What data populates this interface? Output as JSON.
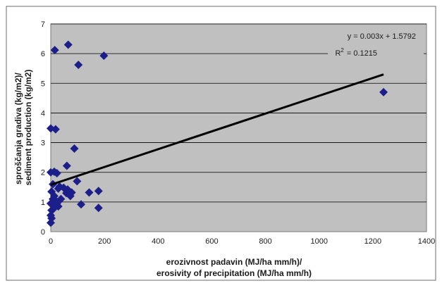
{
  "chart_data": {
    "type": "scatter",
    "title": "",
    "xlabel": [
      "erozivnost padavin (MJ/ha mm/h)/",
      "erosivity of precipitation (MJ/ha mm/h)"
    ],
    "ylabel": [
      "sproščanja gradiva (kg/m2)/",
      "sediment production (kg/m2)"
    ],
    "xlim": [
      0,
      1400
    ],
    "ylim": [
      0,
      7
    ],
    "x_ticks": [
      0,
      200,
      400,
      600,
      800,
      1000,
      1200,
      1400
    ],
    "y_ticks": [
      0,
      1,
      2,
      3,
      4,
      5,
      6,
      7
    ],
    "grid": "horizontal",
    "legend": "none",
    "colors": {
      "plot_background": "#c0c0c0",
      "marker": "#1c1f8a",
      "trendline": "#000000",
      "gridline": "#000000"
    },
    "series": [
      {
        "marker": "diamond",
        "x": [
          15,
          65,
          103,
          198,
          0,
          18,
          88,
          60,
          0,
          13,
          23,
          8,
          33,
          28,
          48,
          63,
          78,
          98,
          38,
          58,
          73,
          143,
          178,
          113,
          178,
          3,
          8,
          13,
          18,
          23,
          28,
          0,
          3,
          8,
          13,
          0,
          3,
          0,
          1240
        ],
        "y": [
          6.12,
          6.3,
          5.62,
          5.93,
          3.48,
          3.45,
          2.8,
          2.22,
          2.0,
          2.02,
          1.97,
          1.6,
          1.52,
          1.45,
          1.48,
          1.42,
          1.32,
          1.7,
          1.1,
          1.3,
          1.2,
          1.32,
          1.37,
          0.92,
          0.8,
          1.35,
          1.1,
          1.2,
          1.05,
          0.95,
          0.85,
          0.95,
          0.72,
          0.75,
          0.8,
          0.55,
          0.45,
          0.3,
          4.7
        ]
      }
    ],
    "trendline": {
      "slope": 0.003,
      "intercept": 1.5792,
      "x_range": [
        0,
        1240
      ],
      "equation": "y = 0.003x + 1.5792",
      "r2_label": "R",
      "r2_value": "= 0.1215"
    }
  }
}
